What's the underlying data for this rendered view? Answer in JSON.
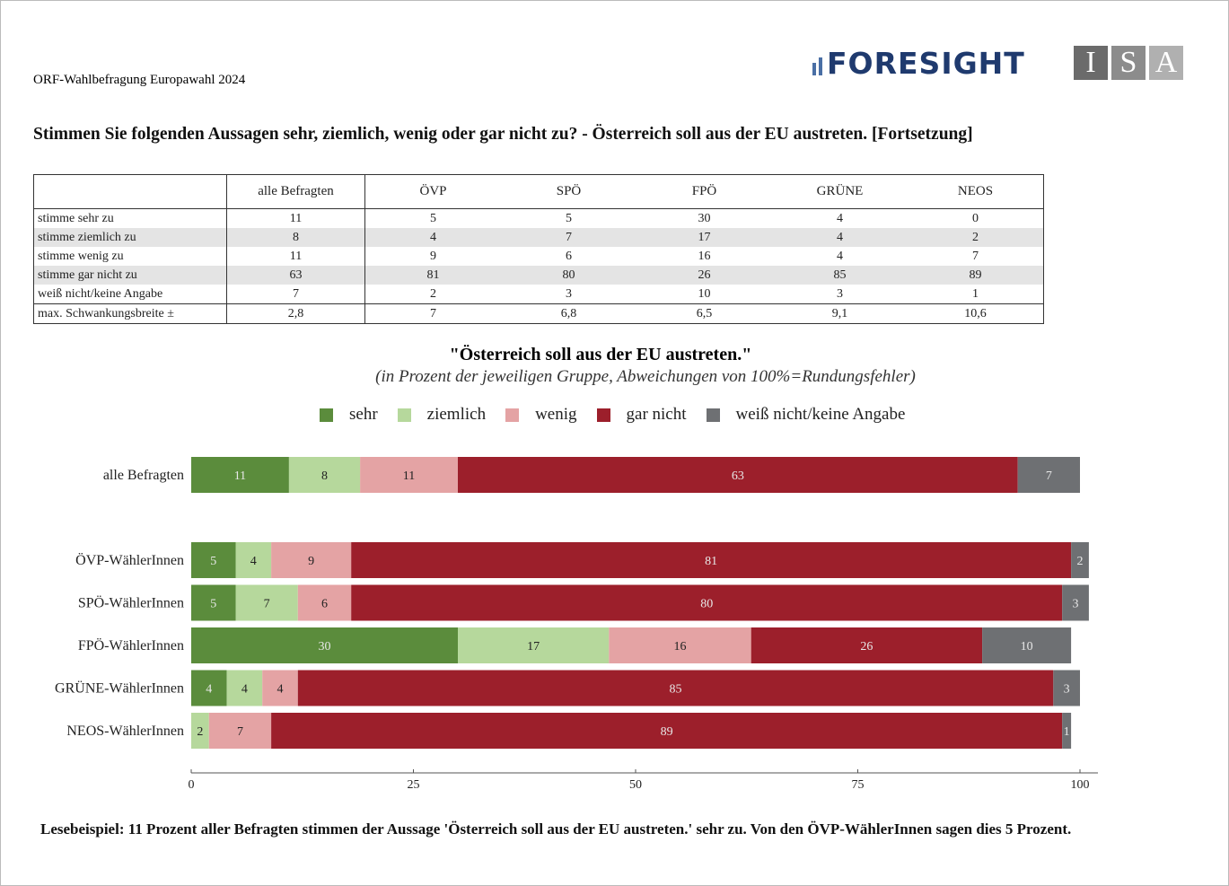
{
  "header": {
    "source": "ORF-Wahlbefragung Europawahl 2024",
    "logo_foresight": "FORESIGHT",
    "logo_isa": [
      "I",
      "S",
      "A"
    ]
  },
  "question": "Stimmen Sie folgenden Aussagen sehr, ziemlich, wenig oder gar nicht zu? - Österreich soll aus der EU austreten. [Fortsetzung]",
  "table": {
    "columns": [
      "alle Befragten",
      "ÖVP",
      "SPÖ",
      "FPÖ",
      "GRÜNE",
      "NEOS"
    ],
    "rows": [
      {
        "label": "stimme sehr zu",
        "values": [
          11,
          5,
          5,
          30,
          4,
          0
        ]
      },
      {
        "label": "stimme ziemlich zu",
        "values": [
          8,
          4,
          7,
          17,
          4,
          2
        ]
      },
      {
        "label": "stimme wenig zu",
        "values": [
          11,
          9,
          6,
          16,
          4,
          7
        ]
      },
      {
        "label": "stimme gar nicht zu",
        "values": [
          63,
          81,
          80,
          26,
          85,
          89
        ]
      },
      {
        "label": "weiß nicht/keine Angabe",
        "values": [
          7,
          2,
          3,
          10,
          3,
          1
        ]
      },
      {
        "label": "max. Schwankungsbreite ±",
        "values": [
          "2,8",
          "7",
          "6,8",
          "6,5",
          "9,1",
          "10,6"
        ]
      }
    ]
  },
  "chart_data": {
    "type": "bar",
    "orientation": "horizontal",
    "stacked": true,
    "title": "\"Österreich soll aus der EU austreten.\"",
    "subtitle": "(in Prozent der jeweiligen Gruppe, Abweichungen von 100%=Rundungsfehler)",
    "categories": [
      "alle Befragten",
      "ÖVP-WählerInnen",
      "SPÖ-WählerInnen",
      "FPÖ-WählerInnen",
      "GRÜNE-WählerInnen",
      "NEOS-WählerInnen"
    ],
    "series": [
      {
        "name": "sehr",
        "color": "#5b8c3c",
        "values": [
          11,
          5,
          5,
          30,
          4,
          0
        ]
      },
      {
        "name": "ziemlich",
        "color": "#b6d89c",
        "values": [
          8,
          4,
          7,
          17,
          4,
          2
        ]
      },
      {
        "name": "wenig",
        "color": "#e4a3a4",
        "values": [
          11,
          9,
          6,
          16,
          4,
          7
        ]
      },
      {
        "name": "gar nicht",
        "color": "#9c1f2b",
        "values": [
          63,
          81,
          80,
          26,
          85,
          89
        ]
      },
      {
        "name": "weiß nicht/keine Angabe",
        "color": "#6e7073",
        "values": [
          7,
          2,
          3,
          10,
          3,
          1
        ]
      }
    ],
    "xlim": [
      0,
      100
    ],
    "xticks": [
      0,
      25,
      50,
      75,
      100
    ]
  },
  "footnote": "Lesebeispiel: 11 Prozent aller Befragten stimmen der Aussage 'Österreich soll aus der EU austreten.' sehr zu. Von den ÖVP-WählerInnen sagen dies 5 Prozent."
}
